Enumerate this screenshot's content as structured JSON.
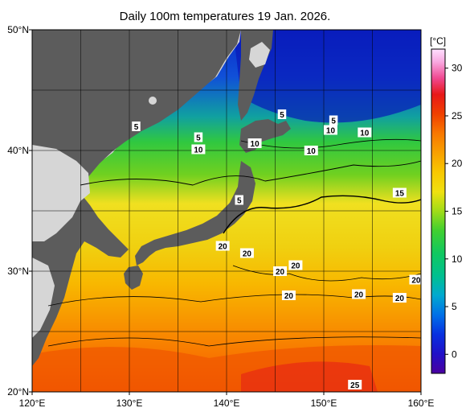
{
  "title": "Daily 100m temperatures 19 Jan. 2026.",
  "map": {
    "lon_min": 120,
    "lon_max": 160,
    "lat_min": 20,
    "lat_max": 50,
    "lat_labels": [
      "50°N",
      "40°N",
      "30°N",
      "20°N"
    ],
    "lon_labels": [
      "120°E",
      "130°E",
      "140°E",
      "150°E",
      "160°E"
    ],
    "contour_labels": [
      {
        "text": "5",
        "lon": 130.7,
        "lat": 42.0
      },
      {
        "text": "5",
        "lon": 137.1,
        "lat": 41.1
      },
      {
        "text": "10",
        "lon": 137.1,
        "lat": 40.1
      },
      {
        "text": "10",
        "lon": 142.9,
        "lat": 40.6
      },
      {
        "text": "5",
        "lon": 145.7,
        "lat": 43.0
      },
      {
        "text": "5",
        "lon": 151.0,
        "lat": 42.5
      },
      {
        "text": "10",
        "lon": 150.7,
        "lat": 41.7
      },
      {
        "text": "10",
        "lon": 154.2,
        "lat": 41.5
      },
      {
        "text": "10",
        "lon": 148.7,
        "lat": 40.0
      },
      {
        "text": "5",
        "lon": 141.3,
        "lat": 35.9
      },
      {
        "text": "15",
        "lon": 157.8,
        "lat": 36.5
      },
      {
        "text": "20",
        "lon": 139.6,
        "lat": 32.1
      },
      {
        "text": "20",
        "lon": 142.1,
        "lat": 31.5
      },
      {
        "text": "20",
        "lon": 147.1,
        "lat": 30.5
      },
      {
        "text": "20",
        "lon": 145.5,
        "lat": 30.0
      },
      {
        "text": "20",
        "lon": 146.4,
        "lat": 28.0
      },
      {
        "text": "20",
        "lon": 153.6,
        "lat": 28.1
      },
      {
        "text": "20",
        "lon": 157.8,
        "lat": 27.8
      },
      {
        "text": "20",
        "lon": 159.5,
        "lat": 29.3
      },
      {
        "text": "25",
        "lon": 153.2,
        "lat": 20.6
      }
    ]
  },
  "colorbar": {
    "unit": "[°C]",
    "min": -2,
    "max": 32,
    "ticks": [
      "30",
      "25",
      "20",
      "15",
      "10",
      "5",
      "0"
    ],
    "colors": [
      "#4a00a0",
      "#3010c8",
      "#0828e0",
      "#0060e8",
      "#00a0e0",
      "#00c0a8",
      "#10c870",
      "#20d040",
      "#70d820",
      "#c8e010",
      "#f0e010",
      "#f8c000",
      "#f8a000",
      "#f87000",
      "#f03800",
      "#e81010",
      "#f04080",
      "#f890d8",
      "#ffd0f8"
    ]
  },
  "colors": {
    "land": "#5c5c5c",
    "land_outside": "#d6d6d6",
    "background": "#ffffff"
  }
}
